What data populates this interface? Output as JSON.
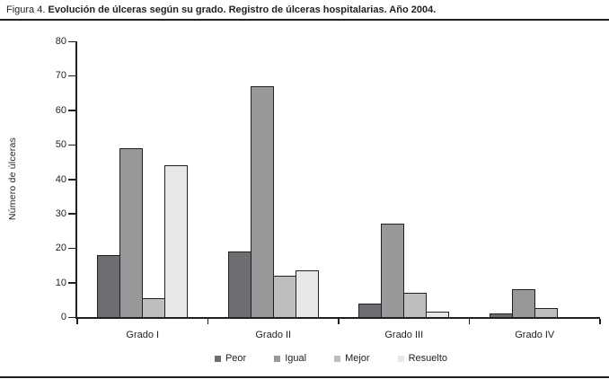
{
  "figure": {
    "title_prefix": "Figura 4.",
    "title_main": "Evolución de úlceras según su grado. Registro de úlceras hospitalarias. Año 2004."
  },
  "chart_data": {
    "type": "bar",
    "title": "Figura 4. Evolución de úlceras según su grado. Registro de úlceras hospitalarias. Año 2004.",
    "xlabel": "",
    "ylabel": "Número de úlceras",
    "ylim": [
      0,
      80
    ],
    "yticks": [
      0,
      10,
      20,
      30,
      40,
      50,
      60,
      70,
      80
    ],
    "grid": false,
    "legend_position": "bottom",
    "categories": [
      "Grado I",
      "Grado II",
      "Grado III",
      "Grado IV"
    ],
    "series": [
      {
        "name": "Peor",
        "color": "#6d6e71",
        "values": [
          18,
          19,
          4,
          1
        ]
      },
      {
        "name": "Igual",
        "color": "#97989a",
        "values": [
          49,
          67,
          27,
          8
        ]
      },
      {
        "name": "Mejor",
        "color": "#bcbec0",
        "values": [
          5.5,
          12,
          7,
          2.5
        ]
      },
      {
        "name": "Resuelto",
        "color": "#e6e7e8",
        "values": [
          44,
          13.5,
          1.5,
          0
        ]
      }
    ],
    "colors": {
      "axis": "#231f20",
      "text": "#231f20",
      "bar_outline": "#231f20",
      "background": "#ffffff"
    }
  }
}
